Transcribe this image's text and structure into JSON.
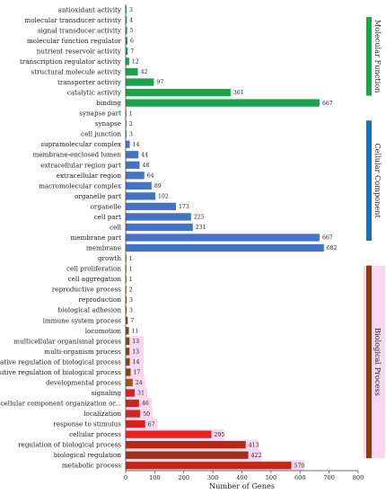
{
  "chart_data": {
    "type": "bar",
    "orientation": "horizontal",
    "xlabel": "Number of Genes",
    "xlim": [
      0,
      800
    ],
    "xticks": [
      "0",
      "100",
      "200",
      "300",
      "400",
      "500",
      "600",
      "700",
      "800"
    ],
    "groups": [
      {
        "name": "Molecular Function",
        "color": "#1aa34a",
        "side_color": "#1aa34a",
        "categories": [
          "antioxidant activity",
          "molecular transducer activity",
          "signal transducer activity",
          "molecular function regulator",
          "nutrient reservoir activity",
          "transcription regulator activity",
          "structural molecule activity",
          "transporter activity",
          "catalytic activity",
          "binding"
        ],
        "values": [
          3,
          4,
          5,
          6,
          7,
          12,
          42,
          97,
          361,
          667
        ],
        "labels": [
          "3",
          "4",
          "5",
          "6",
          "7",
          "12",
          "42",
          "97",
          "361",
          "667"
        ]
      },
      {
        "name": "Cellular Component",
        "color": "#4472c4",
        "side_color": "#1f6fb5",
        "categories": [
          "synapse part",
          "synapse",
          "cell junction",
          "supramolecular complex",
          "membrane-enclosed lumen",
          "extracellular region part",
          "extracellular region",
          "macromolecular complex",
          "organelle part",
          "organelle",
          "cell part",
          "cell",
          "membrane part",
          "membrane"
        ],
        "values": [
          1,
          2,
          3,
          14,
          44,
          48,
          64,
          89,
          102,
          173,
          225,
          231,
          667,
          682
        ],
        "labels": [
          "1",
          "2",
          "3",
          "14",
          "44",
          "48",
          "64",
          "89",
          "102",
          "173",
          "225",
          "231",
          "667",
          "682"
        ]
      },
      {
        "name": "Biological Process",
        "color": "#7a4a12",
        "side_color": "#8b3a12",
        "categories": [
          "growth",
          "cell proliferation",
          "cell aggregation",
          "reproductive process",
          "reproduction",
          "biological adhesion",
          "immune system process",
          "locomotion",
          "multicellular organismal process",
          "multi-organism process",
          "negative regulation of biological process",
          "positive regulation of biological process",
          "developmental process",
          "signaling",
          "cellular component organization or...",
          "localization",
          "response to stimulus",
          "cellular process",
          "regulation of biological process",
          "biological regulation",
          "metabolic process"
        ],
        "values": [
          1,
          1,
          1,
          2,
          3,
          3,
          7,
          11,
          13,
          13,
          14,
          17,
          24,
          31,
          46,
          50,
          67,
          295,
          413,
          422,
          570
        ],
        "labels": [
          "1",
          "1",
          "1",
          "2",
          "3",
          "3",
          "7",
          "11",
          "13",
          "13",
          "14",
          "17",
          "24",
          "31",
          "46",
          "50",
          "67",
          "295",
          "413",
          "422",
          "570"
        ],
        "bar_colors": [
          "#7a4a12",
          "#7a4a12",
          "#7a4a12",
          "#7a4a12",
          "#7a4a12",
          "#7a4a12",
          "#7a4a12",
          "#7a4a12",
          "#7a4a12",
          "#7a4a12",
          "#7a4a12",
          "#7a4a12",
          "#a0521a",
          "#c8281e",
          "#c8281e",
          "#c8281e",
          "#d8201c",
          "#e8231c",
          "#b52a14",
          "#a0301a",
          "#c0281a"
        ]
      }
    ],
    "highlight_color": "#f8d8f0",
    "grid": false,
    "legend": "none"
  }
}
